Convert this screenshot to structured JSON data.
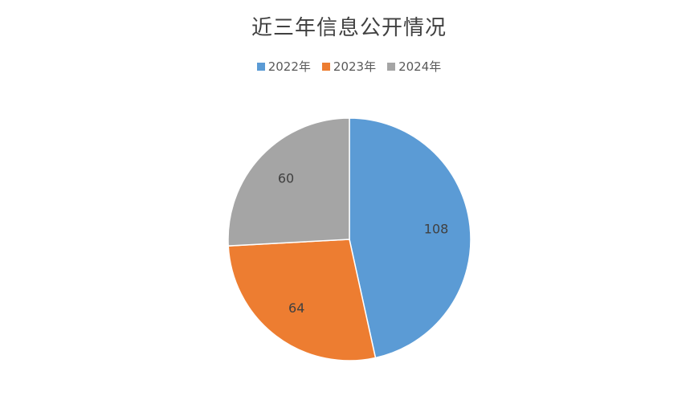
{
  "chart_data": {
    "type": "pie",
    "title": "近三年信息公开情况",
    "categories": [
      "2022年",
      "2023年",
      "2024年"
    ],
    "values": [
      108,
      64,
      60
    ],
    "colors": [
      "#5b9bd5",
      "#ed7d31",
      "#a5a5a5"
    ],
    "legend_position": "top",
    "start_angle": "12 o'clock, clockwise"
  }
}
